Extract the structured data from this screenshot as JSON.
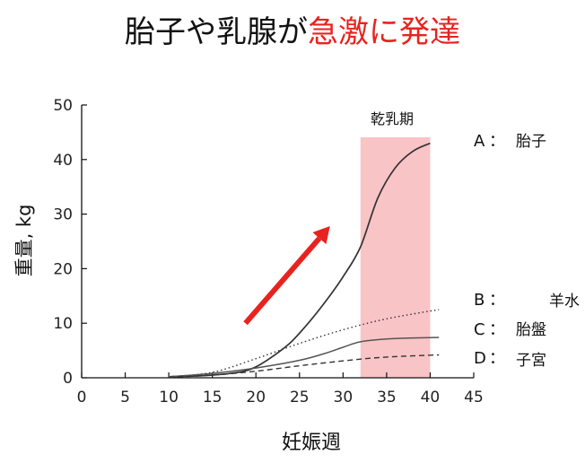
{
  "title": {
    "part1": "胎子や乳腺が",
    "part2": "急激に発達",
    "highlight_color": "#e8231f"
  },
  "chart_data": {
    "type": "line",
    "xlabel": "妊娠週",
    "ylabel": "重量, kg",
    "xlim": [
      0,
      45
    ],
    "ylim": [
      0,
      50
    ],
    "xticks": [
      0,
      5,
      10,
      15,
      20,
      25,
      30,
      35,
      40,
      45
    ],
    "yticks": [
      0,
      10,
      20,
      30,
      40,
      50
    ],
    "grid": false,
    "shaded_region": {
      "label": "乾乳期",
      "x": [
        32,
        40
      ],
      "color": "#f9c4c6"
    },
    "arrow": {
      "from": [
        18.8,
        10
      ],
      "to": [
        28.5,
        27.8
      ],
      "color": "#e8231f"
    },
    "series": [
      {
        "key": "A",
        "name": "胎子",
        "style": "solid",
        "color": "#333333",
        "x": [
          10,
          14,
          18,
          20,
          22,
          24,
          26,
          28,
          30,
          32,
          34,
          36,
          38,
          40
        ],
        "y": [
          0.2,
          0.4,
          1.0,
          2.0,
          4.0,
          6.5,
          10.0,
          14.0,
          18.5,
          24.0,
          33.0,
          38.5,
          41.5,
          43.0
        ]
      },
      {
        "key": "B",
        "name": "羊水",
        "style": "dotted",
        "color": "#333333",
        "x": [
          10,
          15,
          20,
          25,
          30,
          35,
          41
        ],
        "y": [
          0.2,
          1.0,
          3.5,
          6.3,
          8.8,
          10.8,
          12.5
        ]
      },
      {
        "key": "C",
        "name": "胎盤",
        "style": "solid-thin",
        "color": "#555555",
        "x": [
          10,
          15,
          20,
          25,
          28,
          30,
          32,
          35,
          38,
          41
        ],
        "y": [
          0.2,
          0.8,
          1.8,
          3.2,
          4.5,
          5.6,
          6.6,
          7.1,
          7.3,
          7.4
        ]
      },
      {
        "key": "D",
        "name": "子宮",
        "style": "dashed",
        "color": "#333333",
        "x": [
          10,
          15,
          20,
          25,
          30,
          35,
          41
        ],
        "y": [
          0.1,
          0.5,
          1.2,
          2.2,
          3.1,
          3.8,
          4.2
        ]
      }
    ]
  },
  "legend": {
    "items": [
      {
        "key": "A",
        "sep": "：",
        "name": "胎子"
      },
      {
        "key": "B",
        "sep": "：",
        "name": "羊水"
      },
      {
        "key": "C",
        "sep": "：",
        "name": "胎盤"
      },
      {
        "key": "D",
        "sep": "：",
        "name": "子宮"
      }
    ]
  }
}
